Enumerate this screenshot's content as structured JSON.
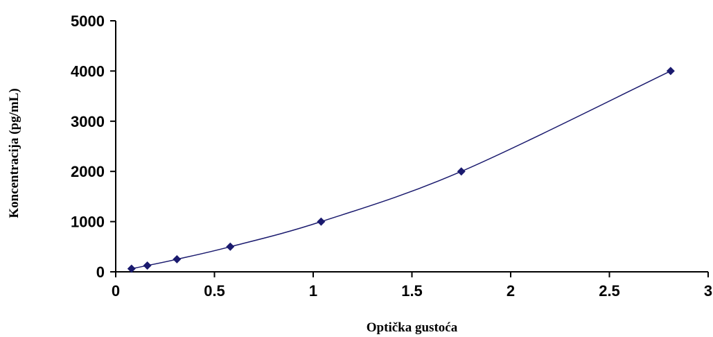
{
  "chart_data": {
    "type": "scatter",
    "title": "",
    "xlabel": "Optička gustoća",
    "ylabel": "Koncentracija (pg/mL)",
    "xlim": [
      0,
      3
    ],
    "ylim": [
      0,
      5000
    ],
    "x_ticks": [
      "0",
      "0.5",
      "1",
      "1.5",
      "2",
      "2.5",
      "3"
    ],
    "y_ticks": [
      "0",
      "1000",
      "2000",
      "3000",
      "4000",
      "5000"
    ],
    "grid": false,
    "legend": "none",
    "series": [
      {
        "x": [
          0.08,
          0.16,
          0.31,
          0.58,
          1.04,
          1.75,
          2.81
        ],
        "y": [
          62.5,
          125,
          250,
          500,
          1000,
          2000,
          4000
        ],
        "marker": "diamond",
        "fit": "smooth curve"
      }
    ],
    "colors": {
      "marker": "#1a1a6e",
      "curve": "#1a1a6e",
      "axis": "#000000"
    }
  }
}
